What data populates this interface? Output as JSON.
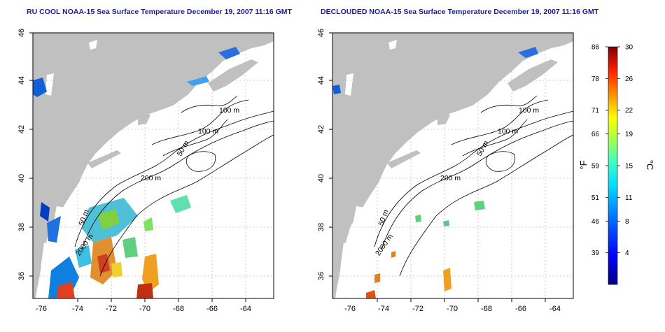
{
  "panels": [
    {
      "title": "RU COOL NOAA-15 Sea Surface Temperature December 19, 2007 11:16 GMT",
      "contours": [
        "100 m",
        "100 m",
        "50 m",
        "200 m",
        "50 m",
        "2000 m"
      ]
    },
    {
      "title": "DECLOUDED NOAA-15 Sea Surface Temperature December 19, 2007 11:16 GMT",
      "contours": [
        "100 m",
        "100 m",
        "50 m",
        "200 m",
        "50 m",
        "2000 m"
      ]
    }
  ],
  "axes": {
    "lon_ticks": [
      "-76",
      "-74",
      "-72",
      "-70",
      "-68",
      "-66",
      "-64"
    ],
    "lat_ticks": [
      "46",
      "44",
      "42",
      "40",
      "38",
      "36"
    ]
  },
  "colorbar": {
    "fahrenheit_unit": "°F",
    "celsius_unit": "°C",
    "fahrenheit_ticks": [
      "86",
      "78",
      "71",
      "66",
      "59",
      "51",
      "46",
      "39"
    ],
    "celsius_ticks": [
      "30",
      "26",
      "22",
      "19",
      "15",
      "11",
      "8",
      "4"
    ],
    "celsius_range": [
      0,
      30
    ]
  },
  "colors": {
    "land": "#c0c0c0",
    "ocean": "#ffffff",
    "title": "#1a1aa6",
    "grid": "#bdbdbd"
  }
}
